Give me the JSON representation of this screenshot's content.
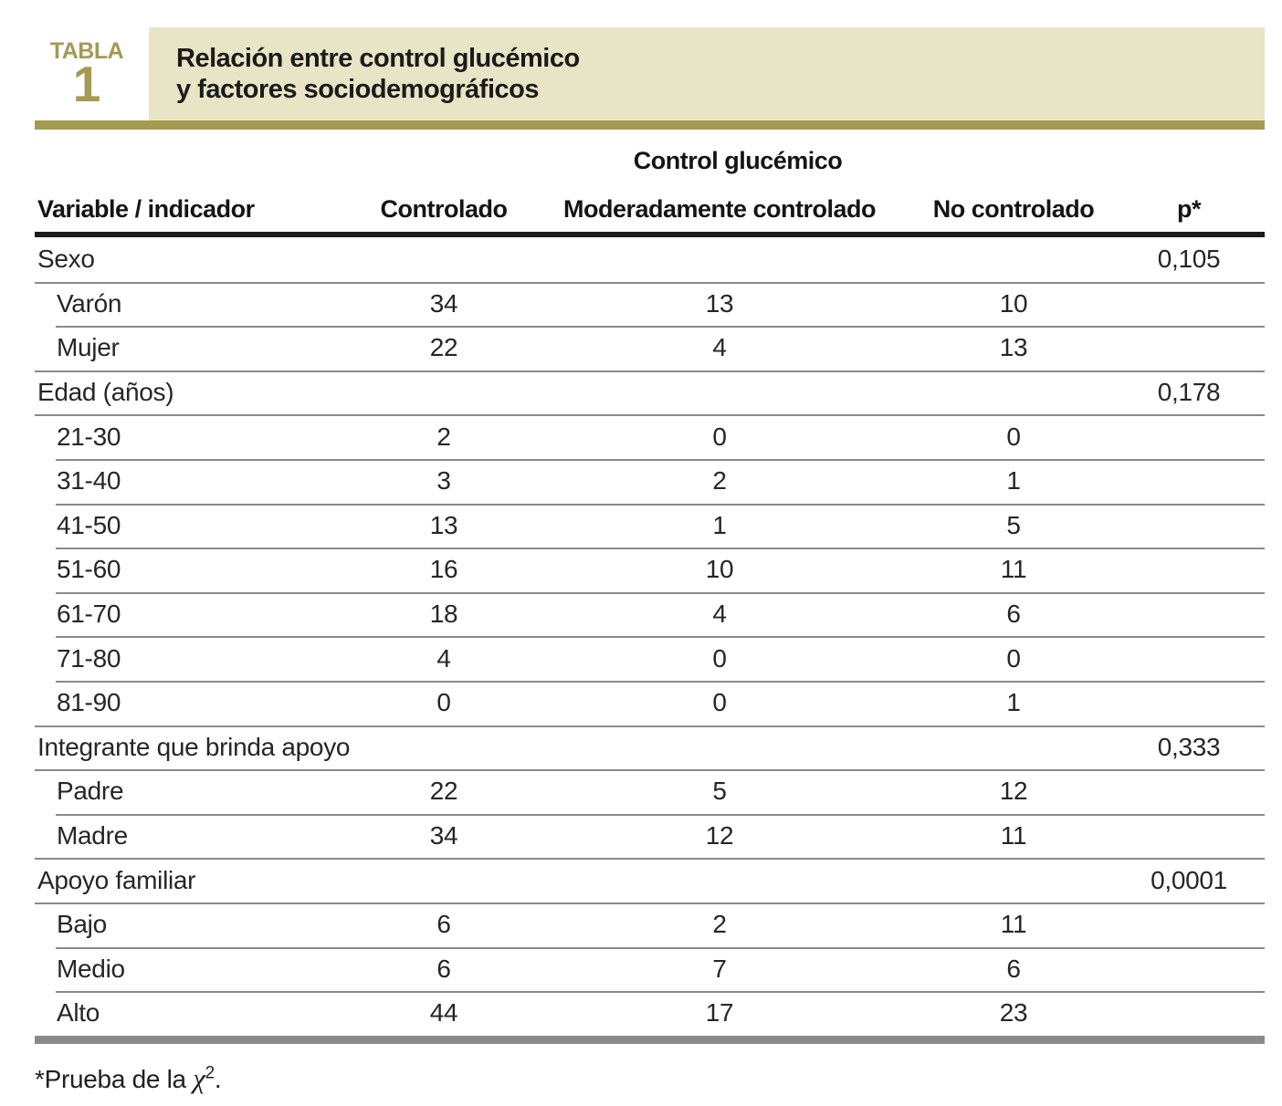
{
  "header": {
    "kicker": "TABLA",
    "number": "1",
    "title_lines": [
      "Relación entre control glucémico",
      "y factores sociodemográficos"
    ]
  },
  "table": {
    "spanner": "Control glucémico",
    "columns": [
      "Variable / indicador",
      "Controlado",
      "Moderadamente controlado",
      "No controlado",
      "p*"
    ],
    "sections": [
      {
        "label": "Sexo",
        "p": "0,105",
        "rows": [
          {
            "label": "Varón",
            "values": [
              "34",
              "13",
              "10"
            ]
          },
          {
            "label": "Mujer",
            "values": [
              "22",
              "4",
              "13"
            ]
          }
        ]
      },
      {
        "label": "Edad (años)",
        "p": "0,178",
        "rows": [
          {
            "label": "21-30",
            "values": [
              "2",
              "0",
              "0"
            ]
          },
          {
            "label": "31-40",
            "values": [
              "3",
              "2",
              "1"
            ]
          },
          {
            "label": "41-50",
            "values": [
              "13",
              "1",
              "5"
            ]
          },
          {
            "label": "51-60",
            "values": [
              "16",
              "10",
              "11"
            ]
          },
          {
            "label": "61-70",
            "values": [
              "18",
              "4",
              "6"
            ]
          },
          {
            "label": "71-80",
            "values": [
              "4",
              "0",
              "0"
            ]
          },
          {
            "label": "81-90",
            "values": [
              "0",
              "0",
              "1"
            ]
          }
        ]
      },
      {
        "label": "Integrante que brinda apoyo",
        "p": "0,333",
        "rows": [
          {
            "label": "Padre",
            "values": [
              "22",
              "5",
              "12"
            ]
          },
          {
            "label": "Madre",
            "values": [
              "34",
              "12",
              "11"
            ]
          }
        ]
      },
      {
        "label": "Apoyo familiar",
        "p": "0,0001",
        "rows": [
          {
            "label": "Bajo",
            "values": [
              "6",
              "2",
              "11"
            ]
          },
          {
            "label": "Medio",
            "values": [
              "6",
              "7",
              "6"
            ]
          },
          {
            "label": "Alto",
            "values": [
              "44",
              "17",
              "23"
            ]
          }
        ]
      }
    ]
  },
  "footnote": {
    "marker": "*",
    "text": "Prueba de la ",
    "symbol": "χ",
    "superscript": "2",
    "period": "."
  },
  "colors": {
    "accent_olive": "#a49a52",
    "title_box_tan": "#e8e4c6",
    "thick_rule_black": "#1c1c1c",
    "separator_gray": "#8a8a8a",
    "text_dark": "#1b1b1b"
  }
}
